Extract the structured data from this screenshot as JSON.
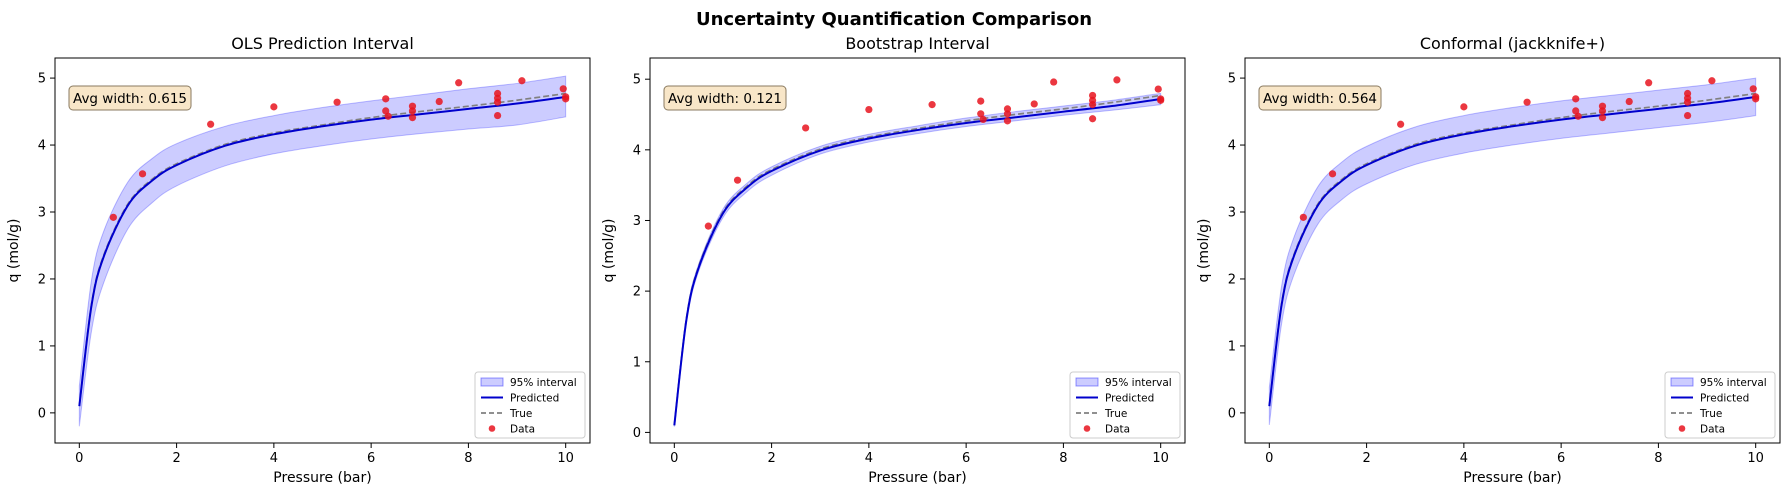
{
  "figure": {
    "title": "Uncertainty Quantification Comparison"
  },
  "chart_data": [
    {
      "type": "line",
      "title": "OLS Prediction Interval",
      "xlabel": "Pressure (bar)",
      "ylabel": "q (mol/g)",
      "xlim": [
        -0.5,
        10.5
      ],
      "ylim": [
        -0.45,
        5.3
      ],
      "xticks": [
        0,
        2,
        4,
        6,
        8,
        10
      ],
      "yticks": [
        0,
        1,
        2,
        3,
        4,
        5
      ],
      "annotation": "Avg width: 0.615",
      "legend": {
        "placement": "lower-right",
        "entries": [
          "95% interval",
          "Predicted",
          "True",
          "Data"
        ]
      },
      "colors": {
        "interval": "#0000ff",
        "predicted": "#0000cc",
        "true": "#808080",
        "data": "#e8141e"
      },
      "series": [
        {
          "name": "95% interval",
          "x": [
            0,
            0.25,
            0.5,
            1,
            1.5,
            2,
            3,
            4,
            5,
            6,
            7,
            8,
            9,
            10
          ],
          "lower": [
            -0.2,
            1.22,
            1.94,
            2.75,
            3.14,
            3.39,
            3.69,
            3.87,
            3.99,
            4.09,
            4.17,
            4.24,
            4.3,
            4.42
          ],
          "upper": [
            0.4,
            1.98,
            2.71,
            3.45,
            3.8,
            4.02,
            4.28,
            4.44,
            4.56,
            4.66,
            4.75,
            4.84,
            4.92,
            5.03
          ]
        },
        {
          "name": "Predicted",
          "x": [
            0,
            0.25,
            0.5,
            1,
            1.5,
            2,
            3,
            4,
            5,
            6,
            7,
            8,
            9,
            10
          ],
          "y": [
            0.1,
            1.6,
            2.33,
            3.1,
            3.47,
            3.7,
            3.99,
            4.16,
            4.28,
            4.38,
            4.46,
            4.54,
            4.62,
            4.72
          ]
        },
        {
          "name": "True",
          "x": [
            0,
            0.25,
            0.5,
            1,
            1.5,
            2,
            3,
            4,
            5,
            6,
            7,
            8,
            9,
            10
          ],
          "y": [
            0.1,
            1.62,
            2.35,
            3.12,
            3.49,
            3.72,
            4.01,
            4.18,
            4.3,
            4.41,
            4.5,
            4.58,
            4.67,
            4.77
          ]
        },
        {
          "name": "Data",
          "x": [
            0.7,
            1.3,
            2.7,
            4.0,
            5.3,
            6.3,
            6.3,
            6.35,
            6.85,
            6.85,
            6.85,
            7.4,
            7.8,
            8.6,
            8.6,
            8.6,
            8.6,
            9.1,
            9.95,
            10.0,
            10.0
          ],
          "y": [
            2.92,
            3.57,
            4.31,
            4.57,
            4.64,
            4.69,
            4.51,
            4.43,
            4.58,
            4.51,
            4.41,
            4.65,
            4.93,
            4.77,
            4.7,
            4.64,
            4.44,
            4.96,
            4.84,
            4.72,
            4.69
          ]
        }
      ]
    },
    {
      "type": "line",
      "title": "Bootstrap Interval",
      "xlabel": "Pressure (bar)",
      "ylabel": "q (mol/g)",
      "xlim": [
        -0.5,
        10.5
      ],
      "ylim": [
        -0.15,
        5.3
      ],
      "xticks": [
        0,
        2,
        4,
        6,
        8,
        10
      ],
      "yticks": [
        0,
        1,
        2,
        3,
        4,
        5
      ],
      "annotation": "Avg width: 0.121",
      "legend": {
        "placement": "lower-right",
        "entries": [
          "95% interval",
          "Predicted",
          "True",
          "Data"
        ]
      },
      "colors": {
        "interval": "#0000ff",
        "predicted": "#0000cc",
        "true": "#808080",
        "data": "#e8141e"
      },
      "series": [
        {
          "name": "95% interval",
          "x": [
            0,
            0.25,
            0.5,
            1,
            1.5,
            2,
            3,
            4,
            5,
            6,
            7,
            8,
            9,
            10
          ],
          "lower": [
            0.08,
            1.55,
            2.28,
            3.04,
            3.41,
            3.64,
            3.94,
            4.11,
            4.23,
            4.33,
            4.41,
            4.49,
            4.56,
            4.64
          ],
          "upper": [
            0.13,
            1.65,
            2.38,
            3.16,
            3.53,
            3.76,
            4.05,
            4.22,
            4.34,
            4.45,
            4.54,
            4.62,
            4.7,
            4.8
          ]
        },
        {
          "name": "Predicted",
          "x": [
            0,
            0.25,
            0.5,
            1,
            1.5,
            2,
            3,
            4,
            5,
            6,
            7,
            8,
            9,
            10
          ],
          "y": [
            0.1,
            1.6,
            2.33,
            3.1,
            3.47,
            3.7,
            3.99,
            4.16,
            4.28,
            4.38,
            4.46,
            4.54,
            4.62,
            4.72
          ]
        },
        {
          "name": "True",
          "x": [
            0,
            0.25,
            0.5,
            1,
            1.5,
            2,
            3,
            4,
            5,
            6,
            7,
            8,
            9,
            10
          ],
          "y": [
            0.1,
            1.62,
            2.35,
            3.12,
            3.49,
            3.72,
            4.01,
            4.18,
            4.3,
            4.41,
            4.5,
            4.58,
            4.67,
            4.77
          ]
        },
        {
          "name": "Data",
          "x": [
            0.7,
            1.3,
            2.7,
            4.0,
            5.3,
            6.3,
            6.3,
            6.35,
            6.85,
            6.85,
            6.85,
            7.4,
            7.8,
            8.6,
            8.6,
            8.6,
            8.6,
            9.1,
            9.95,
            10.0,
            10.0
          ],
          "y": [
            2.92,
            3.57,
            4.31,
            4.57,
            4.64,
            4.69,
            4.51,
            4.43,
            4.58,
            4.51,
            4.41,
            4.65,
            4.96,
            4.77,
            4.7,
            4.64,
            4.44,
            4.99,
            4.86,
            4.72,
            4.7
          ]
        }
      ]
    },
    {
      "type": "line",
      "title": "Conformal (jackknife+)",
      "xlabel": "Pressure (bar)",
      "ylabel": "q (mol/g)",
      "xlim": [
        -0.5,
        10.5
      ],
      "ylim": [
        -0.45,
        5.3
      ],
      "xticks": [
        0,
        2,
        4,
        6,
        8,
        10
      ],
      "yticks": [
        0,
        1,
        2,
        3,
        4,
        5
      ],
      "annotation": "Avg width: 0.564",
      "legend": {
        "placement": "lower-right",
        "entries": [
          "95% interval",
          "Predicted",
          "True",
          "Data"
        ]
      },
      "colors": {
        "interval": "#0000ff",
        "predicted": "#0000cc",
        "true": "#808080",
        "data": "#e8141e"
      },
      "series": [
        {
          "name": "95% interval",
          "x": [
            0,
            0.25,
            0.5,
            1,
            1.5,
            2,
            3,
            4,
            5,
            6,
            7,
            8,
            9,
            10
          ],
          "lower": [
            -0.18,
            1.32,
            2.05,
            2.82,
            3.19,
            3.42,
            3.71,
            3.88,
            4.0,
            4.1,
            4.18,
            4.26,
            4.34,
            4.44
          ],
          "upper": [
            0.38,
            1.88,
            2.61,
            3.38,
            3.75,
            3.98,
            4.27,
            4.44,
            4.56,
            4.66,
            4.74,
            4.82,
            4.9,
            5.0
          ]
        },
        {
          "name": "Predicted",
          "x": [
            0,
            0.25,
            0.5,
            1,
            1.5,
            2,
            3,
            4,
            5,
            6,
            7,
            8,
            9,
            10
          ],
          "y": [
            0.1,
            1.6,
            2.33,
            3.1,
            3.47,
            3.7,
            3.99,
            4.16,
            4.28,
            4.38,
            4.46,
            4.54,
            4.62,
            4.72
          ]
        },
        {
          "name": "True",
          "x": [
            0,
            0.25,
            0.5,
            1,
            1.5,
            2,
            3,
            4,
            5,
            6,
            7,
            8,
            9,
            10
          ],
          "y": [
            0.1,
            1.62,
            2.35,
            3.12,
            3.49,
            3.72,
            4.01,
            4.18,
            4.3,
            4.41,
            4.5,
            4.58,
            4.67,
            4.77
          ]
        },
        {
          "name": "Data",
          "x": [
            0.7,
            1.3,
            2.7,
            4.0,
            5.3,
            6.3,
            6.3,
            6.35,
            6.85,
            6.85,
            6.85,
            7.4,
            7.8,
            8.6,
            8.6,
            8.6,
            8.6,
            9.1,
            9.95,
            10.0,
            10.0
          ],
          "y": [
            2.92,
            3.57,
            4.31,
            4.57,
            4.64,
            4.69,
            4.51,
            4.43,
            4.58,
            4.51,
            4.41,
            4.65,
            4.93,
            4.77,
            4.7,
            4.64,
            4.44,
            4.96,
            4.84,
            4.72,
            4.69
          ]
        }
      ]
    }
  ]
}
